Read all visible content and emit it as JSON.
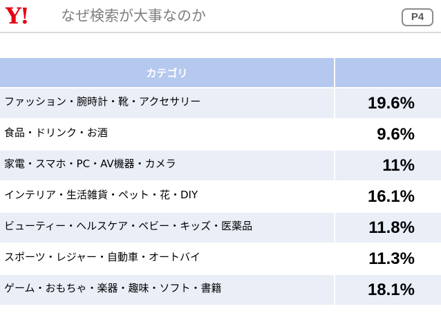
{
  "header": {
    "logo_text": "Y!",
    "title": "なぜ検索が大事なのか",
    "page_label": "P4"
  },
  "colors": {
    "brand_red": "#e60012",
    "header_blue": "#b5c8ee",
    "stripe": "#e9eef7"
  },
  "table": {
    "headers": [
      "カテゴリ",
      ""
    ],
    "rows": [
      {
        "category": "ファッション・腕時計・靴・アクセサリー",
        "value": "19.6%"
      },
      {
        "category": "食品・ドリンク・お酒",
        "value": "9.6%"
      },
      {
        "category": "家電・スマホ・PC・AV機器・カメラ",
        "value": "11%"
      },
      {
        "category": "インテリア・生活雑貨・ペット・花・DIY",
        "value": "16.1%"
      },
      {
        "category": "ビューティー・ヘルスケア・ベビー・キッズ・医薬品",
        "value": "11.8%"
      },
      {
        "category": "スポーツ・レジャー・自動車・オートバイ",
        "value": "11.3%"
      },
      {
        "category": "ゲーム・おもちゃ・楽器・趣味・ソフト・書籍",
        "value": "18.1%"
      }
    ]
  }
}
